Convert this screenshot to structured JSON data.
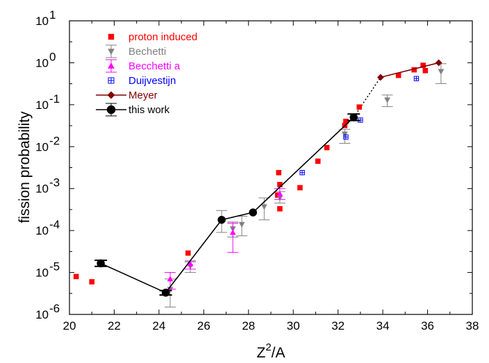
{
  "chart_data": {
    "type": "scatter",
    "title": "",
    "xlabel_main": "Z",
    "xlabel_sup": "2",
    "xlabel_rest": "/A",
    "ylabel": "fission probability",
    "xlim": [
      20,
      38
    ],
    "ylim": [
      1e-06,
      10
    ],
    "yscale": "log",
    "xticks": [
      "20",
      "22",
      "24",
      "26",
      "28",
      "30",
      "32",
      "34",
      "36",
      "38"
    ],
    "yticks": [
      {
        "base": "10",
        "exp": "-6"
      },
      {
        "base": "10",
        "exp": "-5"
      },
      {
        "base": "10",
        "exp": "-4"
      },
      {
        "base": "10",
        "exp": "-3"
      },
      {
        "base": "10",
        "exp": "-2"
      },
      {
        "base": "10",
        "exp": "-1"
      },
      {
        "base": "10",
        "exp": "0"
      },
      {
        "base": "10",
        "exp": "1"
      }
    ],
    "grid": false,
    "legend_position": "top-left",
    "series": [
      {
        "name": "proton induced",
        "color": "#ff0000",
        "marker": "square",
        "points": [
          {
            "x": 20.3,
            "y": 8e-06
          },
          {
            "x": 21.0,
            "y": 6e-06
          },
          {
            "x": 25.3,
            "y": 2.9e-05
          },
          {
            "x": 29.3,
            "y": 0.0007
          },
          {
            "x": 29.35,
            "y": 0.0024
          },
          {
            "x": 29.4,
            "y": 0.00125
          },
          {
            "x": 29.4,
            "y": 0.00033
          },
          {
            "x": 30.3,
            "y": 0.00105
          },
          {
            "x": 31.1,
            "y": 0.0045
          },
          {
            "x": 31.5,
            "y": 0.0095
          },
          {
            "x": 32.3,
            "y": 0.032
          },
          {
            "x": 32.35,
            "y": 0.04
          },
          {
            "x": 32.95,
            "y": 0.088
          },
          {
            "x": 34.7,
            "y": 0.5
          },
          {
            "x": 35.4,
            "y": 0.68
          },
          {
            "x": 35.8,
            "y": 0.87
          },
          {
            "x": 35.9,
            "y": 0.65
          }
        ]
      },
      {
        "name": "Bechetti",
        "color": "#808080",
        "marker": "triangle-down",
        "points": [
          {
            "x": 24.5,
            "y": 4e-06,
            "ylo": 1.5e-06,
            "yhi": 7e-06
          },
          {
            "x": 25.4,
            "y": 1.4e-05,
            "ylo": 1e-05,
            "yhi": 1.9e-05
          },
          {
            "x": 26.8,
            "y": 0.00018,
            "ylo": 9e-05,
            "yhi": 0.0003
          },
          {
            "x": 27.3,
            "y": 0.00011,
            "ylo": 7e-05,
            "yhi": 0.00016
          },
          {
            "x": 27.7,
            "y": 0.00014,
            "ylo": 7.5e-05,
            "yhi": 0.00022
          },
          {
            "x": 28.7,
            "y": 0.00037,
            "ylo": 0.00018,
            "yhi": 0.0006
          },
          {
            "x": 29.4,
            "y": 0.0006,
            "ylo": 0.00045,
            "yhi": 0.00085
          },
          {
            "x": 32.3,
            "y": 0.02,
            "ylo": 0.012,
            "yhi": 0.026
          },
          {
            "x": 34.2,
            "y": 0.13,
            "ylo": 0.09,
            "yhi": 0.17
          },
          {
            "x": 36.6,
            "y": 0.62,
            "ylo": 0.32,
            "yhi": 0.95
          }
        ]
      },
      {
        "name": "Becchetti a",
        "color": "#ff00ff",
        "marker": "triangle-up",
        "points": [
          {
            "x": 24.5,
            "y": 7e-06,
            "ylo": 4e-06,
            "yhi": 1e-05
          },
          {
            "x": 25.4,
            "y": 1.6e-05,
            "ylo": 1.2e-05,
            "yhi": 1.8e-05
          },
          {
            "x": 27.3,
            "y": 9e-05,
            "ylo": 3e-05,
            "yhi": 0.00015
          },
          {
            "x": 29.4,
            "y": 0.00075,
            "ylo": 0.00055,
            "yhi": 0.001
          }
        ]
      },
      {
        "name": "Duijvestijn",
        "color": "#0000ff",
        "marker": "boxed-plus",
        "points": [
          {
            "x": 30.4,
            "y": 0.0024
          },
          {
            "x": 32.35,
            "y": 0.017
          },
          {
            "x": 33.0,
            "y": 0.043
          },
          {
            "x": 35.5,
            "y": 0.42
          }
        ]
      },
      {
        "name": "Meyer",
        "color": "#800000",
        "marker": "diamond",
        "line": "solid",
        "points": [
          {
            "x": 33.9,
            "y": 0.45
          },
          {
            "x": 36.5,
            "y": 1.0
          }
        ]
      },
      {
        "name": "this work",
        "color": "#000000",
        "marker": "circle",
        "line": "solid",
        "points": [
          {
            "x": 21.4,
            "y": 1.65e-05,
            "ylo": 1.4e-05,
            "yhi": 1.95e-05
          },
          {
            "x": 24.3,
            "y": 3.3e-06,
            "ylo": 2.9e-06,
            "yhi": 3.7e-06
          },
          {
            "x": 26.8,
            "y": 0.00018
          },
          {
            "x": 28.2,
            "y": 0.00027
          },
          {
            "x": 32.7,
            "y": 0.05,
            "ylo": 0.042,
            "yhi": 0.06
          }
        ]
      }
    ],
    "connector": {
      "style": "dotted",
      "color": "#000000",
      "from": {
        "x": 32.7,
        "y": 0.05
      },
      "to": {
        "x": 33.9,
        "y": 0.45
      }
    }
  }
}
